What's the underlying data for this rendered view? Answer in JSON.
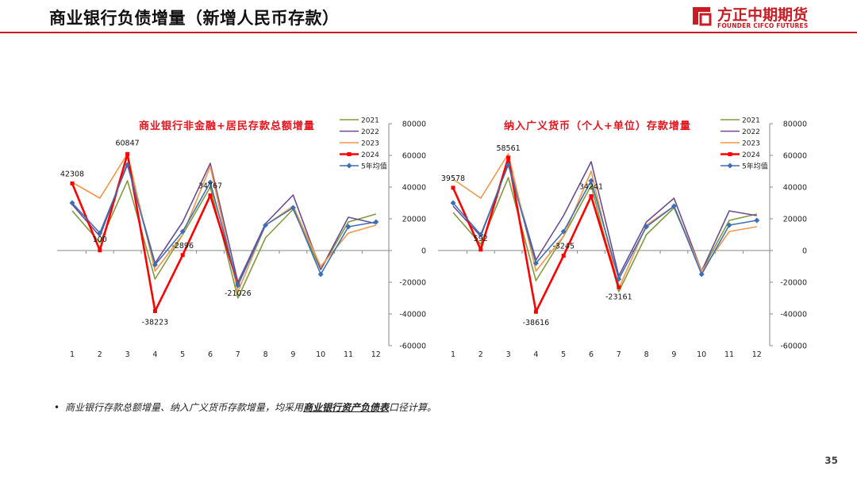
{
  "page": {
    "title": "商业银行负债增量（新增人民币存款）",
    "logo_cn": "方正中期期货",
    "logo_en": "FOUNDER CIFCO FUTURES",
    "note_prefix": "商业银行存款总额增量、纳入广义货币存款增量，均采用",
    "note_emph": "商业银行资产负债表",
    "note_suffix": "口径计算。",
    "page_number": "35"
  },
  "colors": {
    "2021": "#7f9c3a",
    "2022": "#6a4c93",
    "2023": "#f79646",
    "2024": "#ff0000",
    "avg": "#3c6fb4",
    "brand": "#c81c22"
  },
  "chart_data": [
    {
      "type": "line",
      "title": "商业银行非金融+居民存款总额增量",
      "x": [
        1,
        2,
        3,
        4,
        5,
        6,
        7,
        8,
        9,
        10,
        11,
        12
      ],
      "ylim": [
        -60000,
        80000
      ],
      "yticks": [
        80000,
        60000,
        40000,
        20000,
        0,
        -20000,
        -40000,
        -60000
      ],
      "y_axis_side": "right",
      "legend_placement": "top-right",
      "grid": false,
      "series": [
        {
          "name": "2021",
          "key": "2021",
          "values": [
            25000,
            5000,
            44000,
            -18000,
            10000,
            40000,
            -30000,
            8000,
            26000,
            -12000,
            18000,
            23000
          ]
        },
        {
          "name": "2022",
          "key": "2022",
          "values": [
            29000,
            9000,
            55000,
            -8000,
            18000,
            55000,
            -20000,
            17000,
            35000,
            -12000,
            21000,
            17000
          ]
        },
        {
          "name": "2023",
          "key": "2023",
          "values": [
            43000,
            33000,
            61000,
            -13000,
            10000,
            53000,
            -26000,
            16000,
            28000,
            -10000,
            11000,
            16000
          ]
        },
        {
          "name": "2024",
          "key": "2024",
          "values": [
            42308,
            100,
            60847,
            -38223,
            -2896,
            34767,
            -21026,
            null,
            null,
            null,
            null,
            null
          ]
        },
        {
          "name": "5年均值",
          "key": "avg",
          "values": [
            30000,
            11000,
            54000,
            -9000,
            12000,
            43000,
            -22000,
            16000,
            27000,
            -15000,
            15000,
            18000
          ]
        }
      ],
      "data_labels": [
        {
          "x": 1,
          "text": "42308"
        },
        {
          "x": 2,
          "text": "100"
        },
        {
          "x": 3,
          "text": "60847"
        },
        {
          "x": 4,
          "text": "-38223"
        },
        {
          "x": 5,
          "text": "-2896"
        },
        {
          "x": 6,
          "text": "34767"
        },
        {
          "x": 7,
          "text": "-21026"
        }
      ]
    },
    {
      "type": "line",
      "title": "纳入广义货币（个人+单位）存款增量",
      "x": [
        1,
        2,
        3,
        4,
        5,
        6,
        7,
        8,
        9,
        10,
        11,
        12
      ],
      "ylim": [
        -60000,
        80000
      ],
      "yticks": [
        80000,
        60000,
        40000,
        20000,
        0,
        -20000,
        -40000,
        -60000
      ],
      "y_axis_side": "right",
      "legend_placement": "top-right",
      "grid": false,
      "series": [
        {
          "name": "2021",
          "key": "2021",
          "values": [
            24000,
            4000,
            46000,
            -19000,
            9000,
            41000,
            -26000,
            10000,
            27000,
            -13000,
            19000,
            23000
          ]
        },
        {
          "name": "2022",
          "key": "2022",
          "values": [
            28000,
            9000,
            55000,
            -6000,
            22000,
            56000,
            -16000,
            18000,
            33000,
            -13000,
            25000,
            22000
          ]
        },
        {
          "name": "2023",
          "key": "2023",
          "values": [
            45000,
            33000,
            61000,
            -13000,
            9000,
            50000,
            -24000,
            16000,
            28000,
            -13000,
            12000,
            15000
          ]
        },
        {
          "name": "2024",
          "key": "2024",
          "values": [
            39578,
            592,
            58561,
            -38616,
            -3245,
            34241,
            -23161,
            null,
            null,
            null,
            null,
            null
          ]
        },
        {
          "name": "5年均值",
          "key": "avg",
          "values": [
            30000,
            10000,
            54000,
            -8000,
            12000,
            44000,
            -18000,
            15000,
            28000,
            -15000,
            16000,
            19000
          ]
        }
      ],
      "data_labels": [
        {
          "x": 1,
          "text": "39578"
        },
        {
          "x": 2,
          "text": "592"
        },
        {
          "x": 3,
          "text": "58561"
        },
        {
          "x": 4,
          "text": "-38616"
        },
        {
          "x": 5,
          "text": "-3245"
        },
        {
          "x": 6,
          "text": "34241"
        },
        {
          "x": 7,
          "text": "-23161"
        }
      ]
    }
  ]
}
